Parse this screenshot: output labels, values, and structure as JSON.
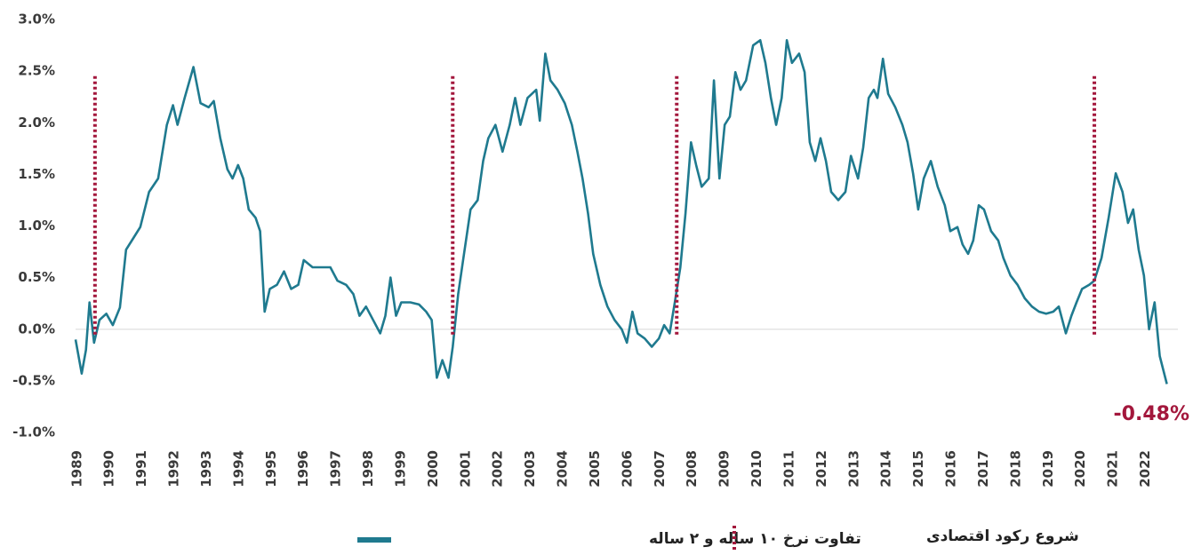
{
  "chart_data": {
    "type": "line",
    "annotation": "-0.48%",
    "xlim": [
      1988.95,
      2023.0
    ],
    "xticks": [
      1989,
      1990,
      1991,
      1992,
      1993,
      1994,
      1995,
      1996,
      1997,
      1998,
      1999,
      2000,
      2001,
      2002,
      2003,
      2004,
      2005,
      2006,
      2007,
      2008,
      2009,
      2010,
      2011,
      2012,
      2013,
      2014,
      2015,
      2016,
      2017,
      2018,
      2019,
      2020,
      2021,
      2022
    ],
    "ylim": [
      -1.0,
      3.0
    ],
    "yticks": [
      {
        "value": -1.0,
        "label": "-1.0%"
      },
      {
        "value": -0.5,
        "label": "-0.5%"
      },
      {
        "value": 0.0,
        "label": "0.0%"
      },
      {
        "value": 0.5,
        "label": "0.5%"
      },
      {
        "value": 1.0,
        "label": "1.0%"
      },
      {
        "value": 1.5,
        "label": "1.5%"
      },
      {
        "value": 2.0,
        "label": "2.0%"
      },
      {
        "value": 2.5,
        "label": "2.5%"
      },
      {
        "value": 3.0,
        "label": "3.0%"
      }
    ],
    "series": [
      {
        "name": "تفاوت نرخ ۱۰ ساله و ۲ ساله",
        "color": "#1f7a8f",
        "x": [
          1988.95,
          1989.14,
          1989.27,
          1989.38,
          1989.52,
          1989.69,
          1989.9,
          1990.1,
          1990.32,
          1990.51,
          1990.73,
          1990.95,
          1991.22,
          1991.5,
          1991.77,
          1991.96,
          1992.1,
          1992.32,
          1992.59,
          1992.81,
          1993.06,
          1993.22,
          1993.42,
          1993.64,
          1993.8,
          1993.97,
          1994.13,
          1994.3,
          1994.51,
          1994.65,
          1994.79,
          1994.95,
          1995.17,
          1995.39,
          1995.61,
          1995.83,
          1996.0,
          1996.27,
          1996.54,
          1996.82,
          1997.04,
          1997.31,
          1997.53,
          1997.72,
          1997.92,
          1998.14,
          1998.36,
          1998.52,
          1998.68,
          1998.85,
          1999.01,
          1999.29,
          1999.56,
          1999.78,
          1999.95,
          2000.11,
          2000.28,
          2000.47,
          2000.6,
          2000.77,
          2000.93,
          2001.15,
          2001.37,
          2001.54,
          2001.7,
          2001.92,
          2002.14,
          2002.36,
          2002.53,
          2002.69,
          2002.91,
          2003.18,
          2003.29,
          2003.46,
          2003.62,
          2003.84,
          2004.06,
          2004.28,
          2004.45,
          2004.61,
          2004.78,
          2004.94,
          2005.16,
          2005.38,
          2005.6,
          2005.82,
          2005.98,
          2006.15,
          2006.31,
          2006.53,
          2006.75,
          2006.97,
          2007.13,
          2007.3,
          2007.46,
          2007.63,
          2007.79,
          2007.96,
          2008.12,
          2008.29,
          2008.51,
          2008.67,
          2008.84,
          2009.0,
          2009.16,
          2009.33,
          2009.49,
          2009.66,
          2009.88,
          2010.1,
          2010.26,
          2010.43,
          2010.59,
          2010.76,
          2010.92,
          2011.08,
          2011.3,
          2011.47,
          2011.63,
          2011.8,
          2011.96,
          2012.13,
          2012.29,
          2012.51,
          2012.73,
          2012.9,
          2013.12,
          2013.28,
          2013.45,
          2013.61,
          2013.72,
          2013.89,
          2014.05,
          2014.27,
          2014.49,
          2014.65,
          2014.82,
          2014.98,
          2015.15,
          2015.37,
          2015.58,
          2015.8,
          2015.97,
          2016.19,
          2016.35,
          2016.52,
          2016.68,
          2016.85,
          2017.01,
          2017.23,
          2017.45,
          2017.61,
          2017.83,
          2018.05,
          2018.27,
          2018.49,
          2018.71,
          2018.93,
          2019.15,
          2019.32,
          2019.54,
          2019.71,
          2019.87,
          2020.04,
          2020.26,
          2020.42,
          2020.64,
          2020.86,
          2021.08,
          2021.29,
          2021.46,
          2021.62,
          2021.79,
          2021.95,
          2022.11,
          2022.28,
          2022.44,
          2022.66
        ],
        "values": [
          -0.1,
          -0.43,
          -0.2,
          0.26,
          -0.13,
          0.09,
          0.15,
          0.04,
          0.21,
          0.77,
          0.88,
          0.99,
          1.33,
          1.46,
          1.98,
          2.17,
          1.98,
          2.24,
          2.54,
          2.19,
          2.15,
          2.21,
          1.85,
          1.55,
          1.46,
          1.59,
          1.46,
          1.16,
          1.08,
          0.95,
          0.17,
          0.39,
          0.43,
          0.56,
          0.39,
          0.43,
          0.67,
          0.6,
          0.6,
          0.6,
          0.47,
          0.43,
          0.34,
          0.13,
          0.22,
          0.09,
          -0.04,
          0.13,
          0.5,
          0.13,
          0.26,
          0.26,
          0.24,
          0.17,
          0.09,
          -0.47,
          -0.3,
          -0.47,
          -0.17,
          0.34,
          0.69,
          1.16,
          1.25,
          1.63,
          1.85,
          1.98,
          1.72,
          1.98,
          2.24,
          1.98,
          2.24,
          2.32,
          2.02,
          2.67,
          2.41,
          2.32,
          2.19,
          1.98,
          1.72,
          1.46,
          1.12,
          0.73,
          0.43,
          0.22,
          0.09,
          0.0,
          -0.13,
          0.17,
          -0.04,
          -0.09,
          -0.17,
          -0.09,
          0.04,
          -0.04,
          0.26,
          0.6,
          1.12,
          1.81,
          1.59,
          1.38,
          1.46,
          2.41,
          1.46,
          1.98,
          2.06,
          2.49,
          2.32,
          2.41,
          2.75,
          2.8,
          2.58,
          2.24,
          1.98,
          2.24,
          2.8,
          2.58,
          2.67,
          2.49,
          1.81,
          1.63,
          1.85,
          1.63,
          1.33,
          1.25,
          1.33,
          1.68,
          1.46,
          1.76,
          2.24,
          2.32,
          2.24,
          2.62,
          2.28,
          2.15,
          1.98,
          1.81,
          1.51,
          1.16,
          1.46,
          1.63,
          1.38,
          1.2,
          0.95,
          0.99,
          0.82,
          0.73,
          0.86,
          1.2,
          1.16,
          0.95,
          0.86,
          0.69,
          0.52,
          0.43,
          0.3,
          0.22,
          0.17,
          0.15,
          0.17,
          0.22,
          -0.04,
          0.13,
          0.26,
          0.39,
          0.43,
          0.47,
          0.69,
          1.08,
          1.51,
          1.33,
          1.03,
          1.16,
          0.77,
          0.52,
          0.0,
          0.26,
          -0.26,
          -0.53
        ]
      }
    ],
    "recessions": {
      "name": "شروع رکود اقتصادی",
      "color": "#a3173c",
      "x": [
        1989.55,
        2000.6,
        2007.52,
        2020.42
      ]
    }
  }
}
